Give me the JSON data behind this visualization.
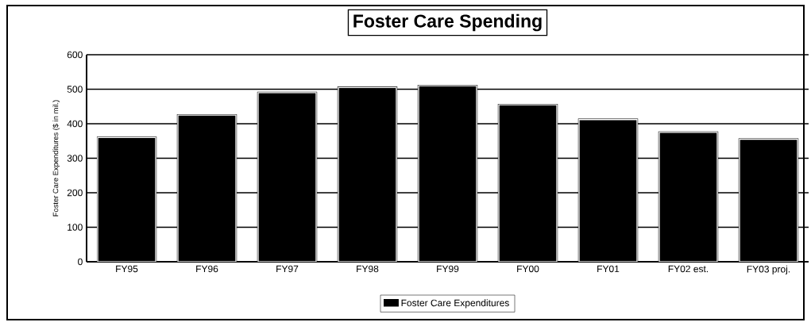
{
  "chart_data": {
    "type": "bar",
    "title": "Foster Care Spending",
    "ylabel": "Foster Care Expenditures ($ in mil.)",
    "categories": [
      "FY95",
      "FY96",
      "FY97",
      "FY98",
      "FY99",
      "FY00",
      "FY01",
      "FY02 est.",
      "FY03 proj."
    ],
    "series": [
      {
        "name": "Foster Care Expenditures",
        "color": "#000000",
        "values": [
          360,
          425,
          490,
          505,
          510,
          455,
          412,
          375,
          355
        ]
      }
    ],
    "ylim": [
      0,
      600
    ],
    "yticks": [
      0,
      100,
      200,
      300,
      400,
      500,
      600
    ],
    "grid": "y",
    "legend": "bottom"
  }
}
